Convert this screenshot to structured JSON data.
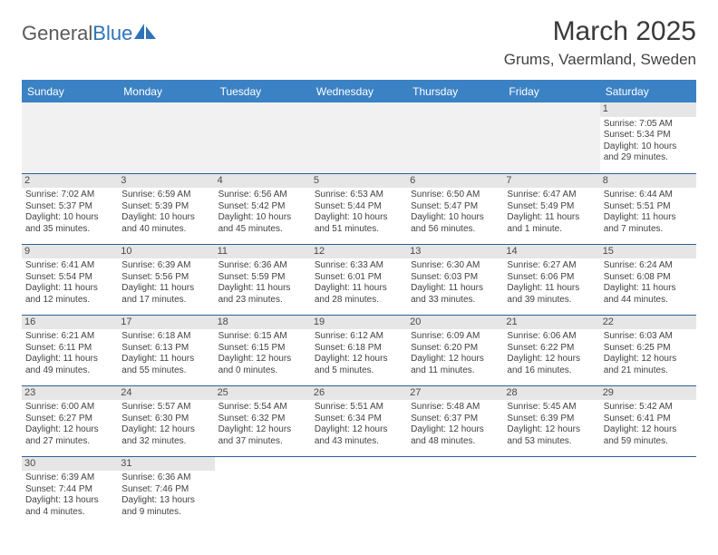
{
  "logo": {
    "textA": "General",
    "textB": "Blue"
  },
  "title": "March 2025",
  "location": "Grums, Vaermland, Sweden",
  "dayHeaders": [
    "Sunday",
    "Monday",
    "Tuesday",
    "Wednesday",
    "Thursday",
    "Friday",
    "Saturday"
  ],
  "colors": {
    "headerBg": "#3b82c4",
    "headerText": "#ffffff",
    "rowBorder": "#2f5f96",
    "emptyBg": "#f1f1f1",
    "dayNumBg": "#e6e6e6",
    "bodyText": "#424242",
    "logoGray": "#5a5a5a",
    "logoBlue": "#2f72b8"
  },
  "startWeekday": 6,
  "days": [
    {
      "n": 1,
      "sunrise": "7:05 AM",
      "sunset": "5:34 PM",
      "daylight": "10 hours and 29 minutes."
    },
    {
      "n": 2,
      "sunrise": "7:02 AM",
      "sunset": "5:37 PM",
      "daylight": "10 hours and 35 minutes."
    },
    {
      "n": 3,
      "sunrise": "6:59 AM",
      "sunset": "5:39 PM",
      "daylight": "10 hours and 40 minutes."
    },
    {
      "n": 4,
      "sunrise": "6:56 AM",
      "sunset": "5:42 PM",
      "daylight": "10 hours and 45 minutes."
    },
    {
      "n": 5,
      "sunrise": "6:53 AM",
      "sunset": "5:44 PM",
      "daylight": "10 hours and 51 minutes."
    },
    {
      "n": 6,
      "sunrise": "6:50 AM",
      "sunset": "5:47 PM",
      "daylight": "10 hours and 56 minutes."
    },
    {
      "n": 7,
      "sunrise": "6:47 AM",
      "sunset": "5:49 PM",
      "daylight": "11 hours and 1 minute."
    },
    {
      "n": 8,
      "sunrise": "6:44 AM",
      "sunset": "5:51 PM",
      "daylight": "11 hours and 7 minutes."
    },
    {
      "n": 9,
      "sunrise": "6:41 AM",
      "sunset": "5:54 PM",
      "daylight": "11 hours and 12 minutes."
    },
    {
      "n": 10,
      "sunrise": "6:39 AM",
      "sunset": "5:56 PM",
      "daylight": "11 hours and 17 minutes."
    },
    {
      "n": 11,
      "sunrise": "6:36 AM",
      "sunset": "5:59 PM",
      "daylight": "11 hours and 23 minutes."
    },
    {
      "n": 12,
      "sunrise": "6:33 AM",
      "sunset": "6:01 PM",
      "daylight": "11 hours and 28 minutes."
    },
    {
      "n": 13,
      "sunrise": "6:30 AM",
      "sunset": "6:03 PM",
      "daylight": "11 hours and 33 minutes."
    },
    {
      "n": 14,
      "sunrise": "6:27 AM",
      "sunset": "6:06 PM",
      "daylight": "11 hours and 39 minutes."
    },
    {
      "n": 15,
      "sunrise": "6:24 AM",
      "sunset": "6:08 PM",
      "daylight": "11 hours and 44 minutes."
    },
    {
      "n": 16,
      "sunrise": "6:21 AM",
      "sunset": "6:11 PM",
      "daylight": "11 hours and 49 minutes."
    },
    {
      "n": 17,
      "sunrise": "6:18 AM",
      "sunset": "6:13 PM",
      "daylight": "11 hours and 55 minutes."
    },
    {
      "n": 18,
      "sunrise": "6:15 AM",
      "sunset": "6:15 PM",
      "daylight": "12 hours and 0 minutes."
    },
    {
      "n": 19,
      "sunrise": "6:12 AM",
      "sunset": "6:18 PM",
      "daylight": "12 hours and 5 minutes."
    },
    {
      "n": 20,
      "sunrise": "6:09 AM",
      "sunset": "6:20 PM",
      "daylight": "12 hours and 11 minutes."
    },
    {
      "n": 21,
      "sunrise": "6:06 AM",
      "sunset": "6:22 PM",
      "daylight": "12 hours and 16 minutes."
    },
    {
      "n": 22,
      "sunrise": "6:03 AM",
      "sunset": "6:25 PM",
      "daylight": "12 hours and 21 minutes."
    },
    {
      "n": 23,
      "sunrise": "6:00 AM",
      "sunset": "6:27 PM",
      "daylight": "12 hours and 27 minutes."
    },
    {
      "n": 24,
      "sunrise": "5:57 AM",
      "sunset": "6:30 PM",
      "daylight": "12 hours and 32 minutes."
    },
    {
      "n": 25,
      "sunrise": "5:54 AM",
      "sunset": "6:32 PM",
      "daylight": "12 hours and 37 minutes."
    },
    {
      "n": 26,
      "sunrise": "5:51 AM",
      "sunset": "6:34 PM",
      "daylight": "12 hours and 43 minutes."
    },
    {
      "n": 27,
      "sunrise": "5:48 AM",
      "sunset": "6:37 PM",
      "daylight": "12 hours and 48 minutes."
    },
    {
      "n": 28,
      "sunrise": "5:45 AM",
      "sunset": "6:39 PM",
      "daylight": "12 hours and 53 minutes."
    },
    {
      "n": 29,
      "sunrise": "5:42 AM",
      "sunset": "6:41 PM",
      "daylight": "12 hours and 59 minutes."
    },
    {
      "n": 30,
      "sunrise": "6:39 AM",
      "sunset": "7:44 PM",
      "daylight": "13 hours and 4 minutes."
    },
    {
      "n": 31,
      "sunrise": "6:36 AM",
      "sunset": "7:46 PM",
      "daylight": "13 hours and 9 minutes."
    }
  ],
  "labels": {
    "sunrise": "Sunrise:",
    "sunset": "Sunset:",
    "daylight": "Daylight:"
  }
}
